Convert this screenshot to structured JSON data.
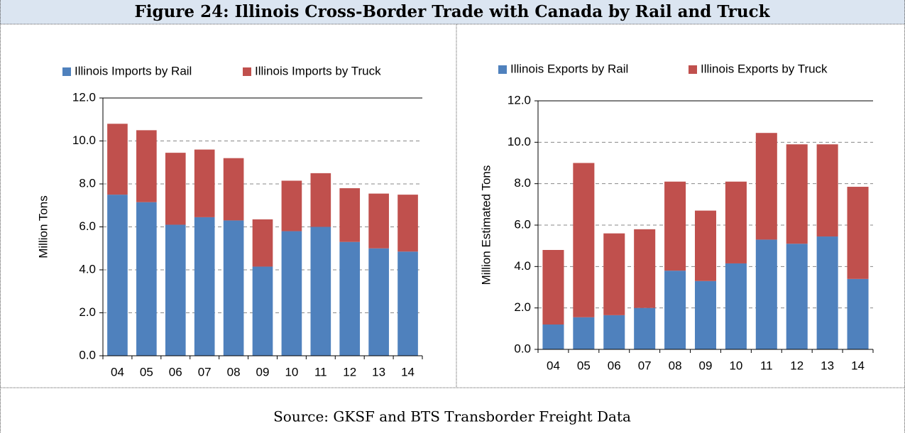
{
  "title": "Figure 24: Illinois Cross-Border Trade with Canada by Rail and Truck",
  "source": "Source: GKSF and BTS Transborder Freight Data",
  "chart_data": [
    {
      "type": "stacked_bar",
      "ylabel": "Million Tons",
      "categories": [
        "04",
        "05",
        "06",
        "07",
        "08",
        "09",
        "10",
        "11",
        "12",
        "13",
        "14"
      ],
      "series": [
        {
          "name": "Illinois Imports by Rail",
          "color": "#4f81bd",
          "values": [
            7.5,
            7.15,
            6.1,
            6.45,
            6.3,
            4.15,
            5.8,
            6.0,
            5.3,
            5.0,
            4.85
          ]
        },
        {
          "name": "Illinois Imports by Truck",
          "color": "#c0504d",
          "values": [
            3.3,
            3.35,
            3.35,
            3.15,
            2.9,
            2.2,
            2.35,
            2.5,
            2.5,
            2.55,
            2.65
          ]
        }
      ],
      "ylim": [
        0,
        12
      ],
      "yticks": [
        {
          "value": 0,
          "label": "0.0"
        },
        {
          "value": 2,
          "label": "2.0"
        },
        {
          "value": 4,
          "label": "4.0"
        },
        {
          "value": 6,
          "label": "6.0"
        },
        {
          "value": 8,
          "label": "8.0"
        },
        {
          "value": 10,
          "label": "10.0"
        },
        {
          "value": 12,
          "label": "12.0"
        }
      ],
      "grid": true,
      "legend": "top"
    },
    {
      "type": "stacked_bar",
      "ylabel": "Million Estimated  Tons",
      "categories": [
        "04",
        "05",
        "06",
        "07",
        "08",
        "09",
        "10",
        "11",
        "12",
        "13",
        "14"
      ],
      "series": [
        {
          "name": "Illinois Exports by Rail",
          "color": "#4f81bd",
          "values": [
            1.2,
            1.55,
            1.65,
            2.0,
            3.8,
            3.3,
            4.15,
            5.3,
            5.1,
            5.45,
            3.4
          ]
        },
        {
          "name": "Illinois Exports by Truck",
          "color": "#c0504d",
          "values": [
            3.6,
            7.45,
            3.95,
            3.8,
            4.3,
            3.4,
            3.95,
            5.15,
            4.8,
            4.45,
            4.45
          ]
        }
      ],
      "ylim": [
        0,
        12
      ],
      "yticks": [
        {
          "value": 0,
          "label": "0.0"
        },
        {
          "value": 2,
          "label": "2.0"
        },
        {
          "value": 4,
          "label": "4.0"
        },
        {
          "value": 6,
          "label": "6.0"
        },
        {
          "value": 8,
          "label": "8.0"
        },
        {
          "value": 10,
          "label": "10.0"
        },
        {
          "value": 12,
          "label": "12.0"
        }
      ],
      "grid": true,
      "legend": "top"
    }
  ]
}
